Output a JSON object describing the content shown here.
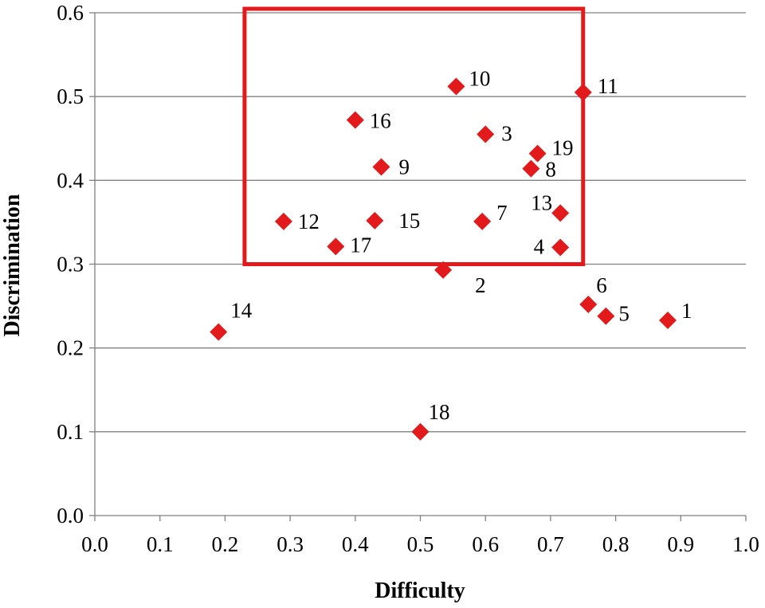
{
  "chart_data": {
    "type": "scatter",
    "title": "",
    "xlabel": "Difficulty",
    "ylabel": "Discrimination",
    "xlim": [
      0.0,
      1.0
    ],
    "ylim": [
      0.0,
      0.6
    ],
    "x_ticks": [
      "0.0",
      "0.1",
      "0.2",
      "0.3",
      "0.4",
      "0.5",
      "0.6",
      "0.7",
      "0.8",
      "0.9",
      "1.0"
    ],
    "y_ticks": [
      "0.0",
      "0.1",
      "0.2",
      "0.3",
      "0.4",
      "0.5",
      "0.6"
    ],
    "grid": "horizontal",
    "marker": "diamond",
    "colors": {
      "marker": "#e31a1c",
      "highlight_box": "#e31a1c",
      "grid": "#808080",
      "axis": "#808080"
    },
    "points": [
      {
        "label": "1",
        "x": 0.88,
        "y": 0.233
      },
      {
        "label": "2",
        "x": 0.535,
        "y": 0.293
      },
      {
        "label": "3",
        "x": 0.6,
        "y": 0.455
      },
      {
        "label": "4",
        "x": 0.715,
        "y": 0.32
      },
      {
        "label": "5",
        "x": 0.785,
        "y": 0.238
      },
      {
        "label": "6",
        "x": 0.758,
        "y": 0.252
      },
      {
        "label": "7",
        "x": 0.595,
        "y": 0.351
      },
      {
        "label": "8",
        "x": 0.67,
        "y": 0.414
      },
      {
        "label": "9",
        "x": 0.44,
        "y": 0.416
      },
      {
        "label": "10",
        "x": 0.555,
        "y": 0.512
      },
      {
        "label": "11",
        "x": 0.75,
        "y": 0.505
      },
      {
        "label": "12",
        "x": 0.29,
        "y": 0.351
      },
      {
        "label": "13",
        "x": 0.715,
        "y": 0.361
      },
      {
        "label": "14",
        "x": 0.19,
        "y": 0.219
      },
      {
        "label": "15",
        "x": 0.43,
        "y": 0.352
      },
      {
        "label": "16",
        "x": 0.4,
        "y": 0.472
      },
      {
        "label": "17",
        "x": 0.37,
        "y": 0.321
      },
      {
        "label": "18",
        "x": 0.5,
        "y": 0.1
      },
      {
        "label": "19",
        "x": 0.68,
        "y": 0.432
      }
    ],
    "highlight_region": {
      "x_range": [
        0.23,
        0.75
      ],
      "y_range": [
        0.3,
        0.6
      ]
    }
  }
}
